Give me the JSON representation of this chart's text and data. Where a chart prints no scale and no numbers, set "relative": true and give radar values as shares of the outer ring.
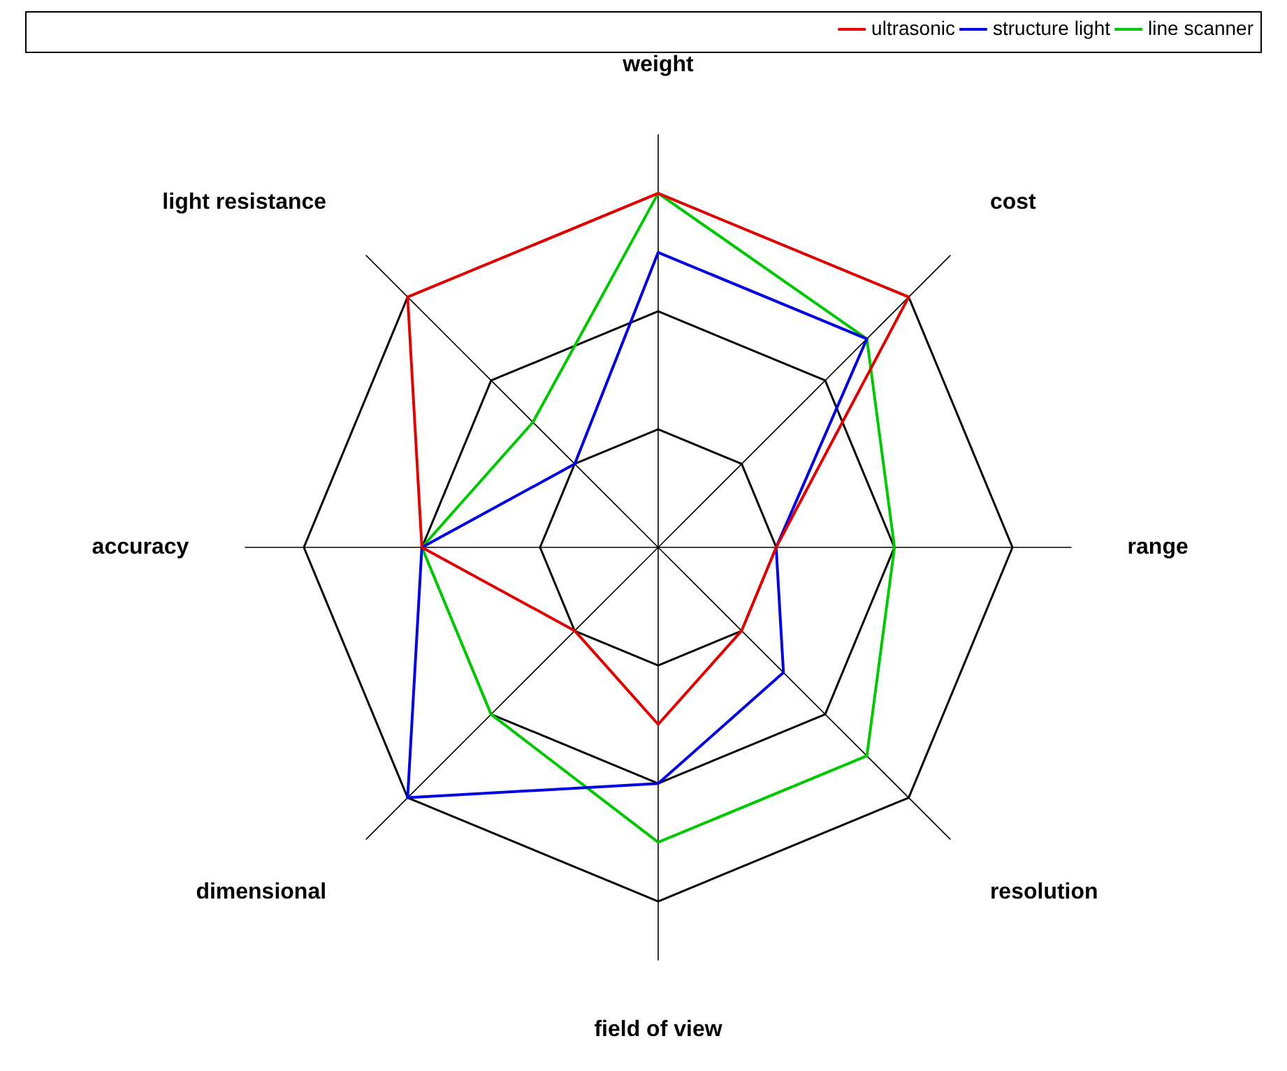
{
  "chart_data": {
    "type": "radar",
    "relative": true,
    "categories": [
      "weight",
      "cost",
      "range",
      "resolution",
      "field of view",
      "dimensional",
      "accuracy",
      "light resistance"
    ],
    "series": [
      {
        "name": "ultrasonic",
        "color": "#e00000",
        "values": [
          1,
          1,
          0.333,
          0.333,
          0.5,
          0.333,
          0.667,
          1
        ]
      },
      {
        "name": "structure light",
        "color": "#0000e0",
        "values": [
          0.833,
          0.833,
          0.333,
          0.5,
          0.667,
          1,
          0.667,
          0.333
        ]
      },
      {
        "name": "line scanner",
        "color": "#00c800",
        "values": [
          1,
          0.833,
          0.667,
          0.833,
          0.833,
          0.667,
          0.667,
          0.5
        ]
      }
    ],
    "legend": "top right",
    "marker": "none",
    "line_style": "solid"
  }
}
